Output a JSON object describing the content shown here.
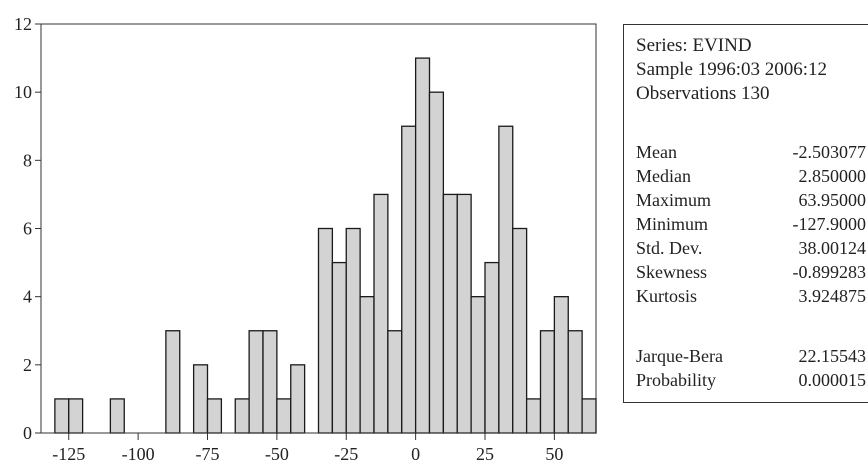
{
  "chart_data": {
    "type": "bar",
    "bin_width": 5,
    "bins": [
      {
        "start": -130,
        "count": 1
      },
      {
        "start": -125,
        "count": 1
      },
      {
        "start": -120,
        "count": 0
      },
      {
        "start": -115,
        "count": 0
      },
      {
        "start": -110,
        "count": 1
      },
      {
        "start": -105,
        "count": 0
      },
      {
        "start": -100,
        "count": 0
      },
      {
        "start": -95,
        "count": 0
      },
      {
        "start": -90,
        "count": 3
      },
      {
        "start": -85,
        "count": 0
      },
      {
        "start": -80,
        "count": 2
      },
      {
        "start": -75,
        "count": 1
      },
      {
        "start": -70,
        "count": 0
      },
      {
        "start": -65,
        "count": 1
      },
      {
        "start": -60,
        "count": 3
      },
      {
        "start": -55,
        "count": 3
      },
      {
        "start": -50,
        "count": 1
      },
      {
        "start": -45,
        "count": 2
      },
      {
        "start": -40,
        "count": 0
      },
      {
        "start": -35,
        "count": 6
      },
      {
        "start": -30,
        "count": 5
      },
      {
        "start": -25,
        "count": 6
      },
      {
        "start": -20,
        "count": 4
      },
      {
        "start": -15,
        "count": 7
      },
      {
        "start": -10,
        "count": 3
      },
      {
        "start": -5,
        "count": 9
      },
      {
        "start": 0,
        "count": 11
      },
      {
        "start": 5,
        "count": 10
      },
      {
        "start": 10,
        "count": 7
      },
      {
        "start": 15,
        "count": 7
      },
      {
        "start": 20,
        "count": 4
      },
      {
        "start": 25,
        "count": 5
      },
      {
        "start": 30,
        "count": 9
      },
      {
        "start": 35,
        "count": 6
      },
      {
        "start": 40,
        "count": 1
      },
      {
        "start": 45,
        "count": 3
      },
      {
        "start": 50,
        "count": 4
      },
      {
        "start": 55,
        "count": 3
      },
      {
        "start": 60,
        "count": 1
      }
    ],
    "xlim": [
      -135,
      65
    ],
    "ylim": [
      0,
      12
    ],
    "x_ticks": [
      -125,
      -100,
      -75,
      -50,
      -25,
      0,
      25,
      50
    ],
    "y_ticks": [
      0,
      2,
      4,
      6,
      8,
      10,
      12
    ],
    "bar_color": "#d3d3d3",
    "edge_color": "#1a1a1a",
    "grid": false
  },
  "stats": {
    "series_line": "Series: EVIND",
    "sample_line": "Sample 1996:03 2006:12",
    "obs_line": "Observations 130",
    "rows": [
      {
        "label": "Mean",
        "value": "-2.503077"
      },
      {
        "label": "Median",
        "value": "2.850000"
      },
      {
        "label": "Maximum",
        "value": "63.95000"
      },
      {
        "label": "Minimum",
        "value": "-127.9000"
      },
      {
        "label": "Std. Dev.",
        "value": "38.00124"
      },
      {
        "label": "Skewness",
        "value": "-0.899283"
      },
      {
        "label": "Kurtosis",
        "value": "3.924875"
      }
    ],
    "test_rows": [
      {
        "label": "Jarque-Bera",
        "value": "22.15543"
      },
      {
        "label": "Probability",
        "value": "0.000015"
      }
    ]
  }
}
